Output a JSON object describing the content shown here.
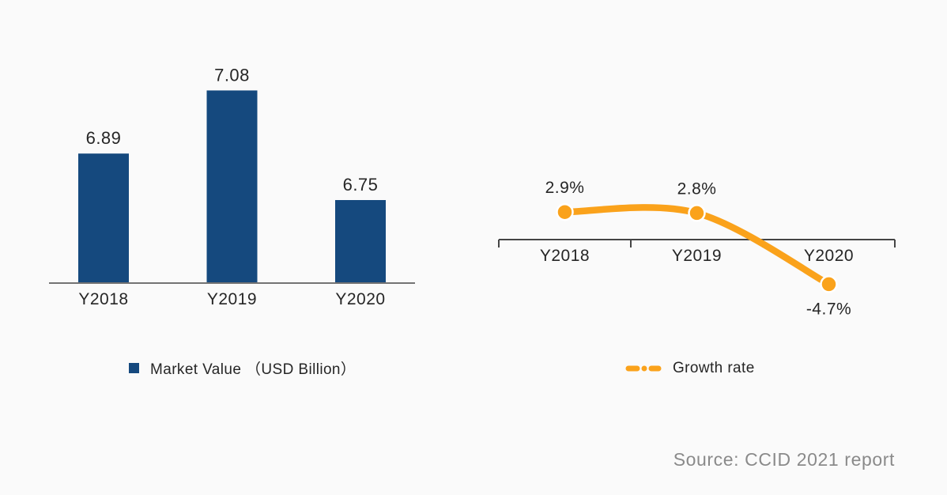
{
  "page": {
    "background": "#fafafa",
    "text_color": "#262626",
    "source_color": "#8a8a8a"
  },
  "source_note": "Source: CCID 2021 report",
  "chart_data": [
    {
      "type": "bar",
      "title": "",
      "series_name": "Market Value （USD Billion）",
      "categories": [
        "Y2018",
        "Y2019",
        "Y2020"
      ],
      "values": [
        6.89,
        7.08,
        6.75
      ],
      "data_labels": [
        "6.89",
        "7.08",
        "6.75"
      ],
      "bar_color": "#15497E",
      "axis_color": "#737373",
      "ylim": [
        6.5,
        7.2
      ],
      "grid": false,
      "legend": {
        "label": "Market Value （USD Billion）",
        "position": "bottom"
      }
    },
    {
      "type": "line",
      "title": "",
      "series_name": "Growth rate",
      "categories": [
        "Y2018",
        "Y2019",
        "Y2020"
      ],
      "values": [
        2.9,
        2.8,
        -4.7
      ],
      "data_labels": [
        "2.9%",
        "2.8%",
        "-4.7%"
      ],
      "line_color": "#FAA21B",
      "marker": "circle",
      "line_style": "dash-dot",
      "axis_color": "#454545",
      "zero_line": true,
      "grid": false,
      "legend": {
        "label": "Growth rate",
        "position": "bottom"
      }
    }
  ]
}
